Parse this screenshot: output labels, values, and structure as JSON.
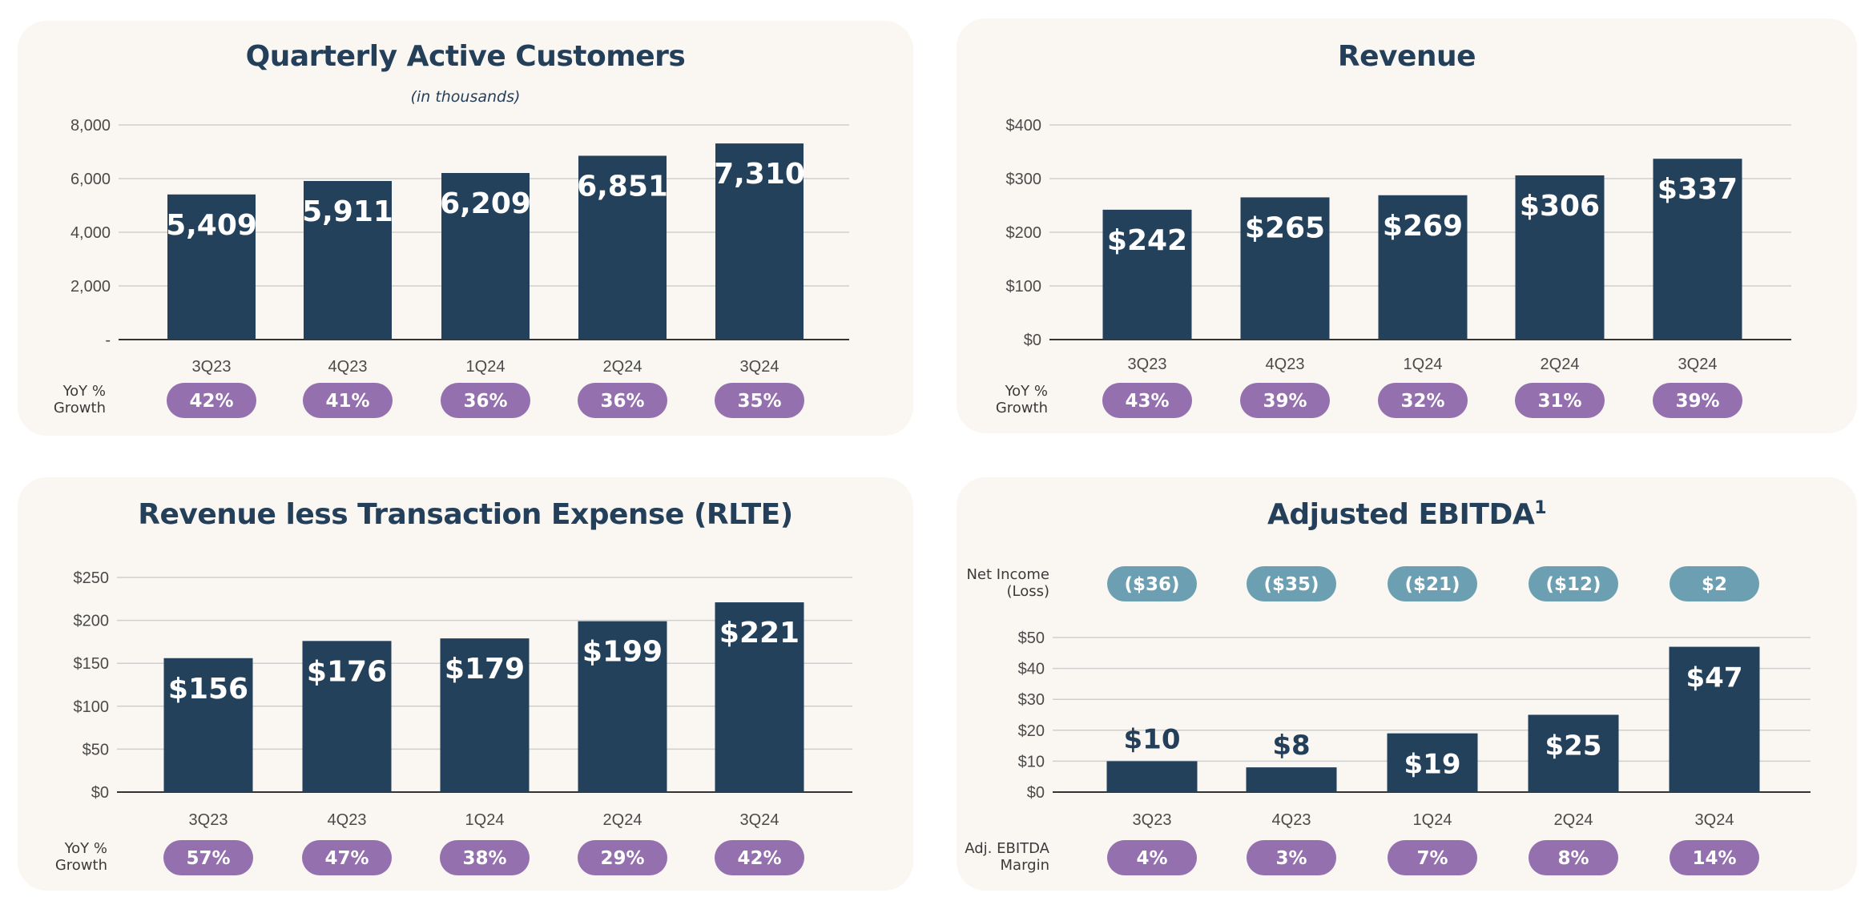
{
  "colors": {
    "bar": "#24415c",
    "pill_growth": "#9470ae",
    "pill_income": "#6c9fb1",
    "panel": "#faf7f2",
    "text": "#243f5a",
    "axis_text": "#4a4a4a"
  },
  "chart_data": [
    {
      "id": "customers",
      "type": "bar",
      "title": "Quarterly Active Customers",
      "subtitle": "(in thousands)",
      "categories": [
        "3Q23",
        "4Q23",
        "1Q24",
        "2Q24",
        "3Q24"
      ],
      "values": [
        5409,
        5911,
        6209,
        6851,
        7310
      ],
      "value_labels": [
        "5,409",
        "5,911",
        "6,209",
        "6,851",
        "7,310"
      ],
      "ylim": [
        0,
        8000
      ],
      "yticks": [
        0,
        2000,
        4000,
        6000,
        8000
      ],
      "ytick_labels": [
        "-",
        "2,000",
        "4,000",
        "6,000",
        "8,000"
      ],
      "grid": true,
      "bottom_row": {
        "label": [
          "YoY %",
          "Growth"
        ],
        "values": [
          "42%",
          "41%",
          "36%",
          "36%",
          "35%"
        ]
      }
    },
    {
      "id": "revenue",
      "type": "bar",
      "title": "Revenue",
      "categories": [
        "3Q23",
        "4Q23",
        "1Q24",
        "2Q24",
        "3Q24"
      ],
      "values": [
        242,
        265,
        269,
        306,
        337
      ],
      "value_labels": [
        "$242",
        "$265",
        "$269",
        "$306",
        "$337"
      ],
      "ylim": [
        0,
        400
      ],
      "yticks": [
        0,
        100,
        200,
        300,
        400
      ],
      "ytick_labels": [
        "$0",
        "$100",
        "$200",
        "$300",
        "$400"
      ],
      "grid": true,
      "bottom_row": {
        "label": [
          "YoY %",
          "Growth"
        ],
        "values": [
          "43%",
          "39%",
          "32%",
          "31%",
          "39%"
        ]
      }
    },
    {
      "id": "rlte",
      "type": "bar",
      "title": "Revenue less Transaction Expense (RLTE)",
      "categories": [
        "3Q23",
        "4Q23",
        "1Q24",
        "2Q24",
        "3Q24"
      ],
      "values": [
        156,
        176,
        179,
        199,
        221
      ],
      "value_labels": [
        "$156",
        "$176",
        "$179",
        "$199",
        "$221"
      ],
      "ylim": [
        0,
        250
      ],
      "yticks": [
        0,
        50,
        100,
        150,
        200,
        250
      ],
      "ytick_labels": [
        "$0",
        "$50",
        "$100",
        "$150",
        "$200",
        "$250"
      ],
      "grid": true,
      "bottom_row": {
        "label": [
          "YoY %",
          "Growth"
        ],
        "values": [
          "57%",
          "47%",
          "38%",
          "29%",
          "42%"
        ]
      }
    },
    {
      "id": "ebitda",
      "type": "bar",
      "title": "Adjusted EBITDA",
      "title_sup": "1",
      "categories": [
        "3Q23",
        "4Q23",
        "1Q24",
        "2Q24",
        "3Q24"
      ],
      "values": [
        10,
        8,
        19,
        25,
        47
      ],
      "value_labels": [
        "$10",
        "$8",
        "$19",
        "$25",
        "$47"
      ],
      "ylim": [
        0,
        50
      ],
      "yticks": [
        0,
        10,
        20,
        30,
        40,
        50
      ],
      "ytick_labels": [
        "$0",
        "$10",
        "$20",
        "$30",
        "$40",
        "$50"
      ],
      "grid": true,
      "top_row": {
        "label": [
          "Net Income",
          "(Loss)"
        ],
        "values": [
          "($36)",
          "($35)",
          "($21)",
          "($12)",
          "$2"
        ]
      },
      "bottom_row": {
        "label": [
          "Adj. EBITDA",
          "Margin"
        ],
        "values": [
          "4%",
          "3%",
          "7%",
          "8%",
          "14%"
        ]
      }
    }
  ]
}
